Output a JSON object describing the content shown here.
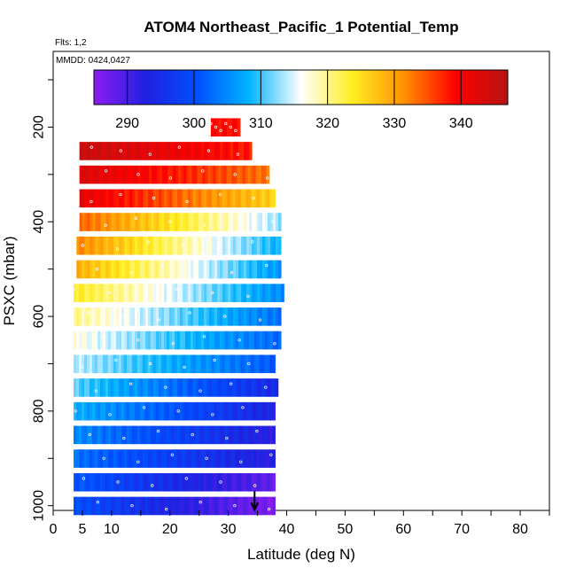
{
  "chart_data": {
    "type": "heatmap",
    "title": "ATOM4 Northeast_Pacific_1 Potential_Temp",
    "notes": [
      "Flts: 1,2",
      "MMDD: 0424,0427"
    ],
    "xlabel": "Latitude (deg N)",
    "ylabel": "PSXC (mbar)",
    "xlim": [
      0,
      85
    ],
    "ylim": [
      1010,
      40
    ],
    "x_ticks": [
      0,
      5,
      10,
      20,
      30,
      40,
      50,
      60,
      70,
      80
    ],
    "y_ticks": [
      200,
      400,
      600,
      800,
      1000
    ],
    "colorbar": {
      "ticks": [
        290,
        300,
        310,
        320,
        330,
        340
      ],
      "range": [
        285,
        347
      ],
      "colors": [
        "#8c1cf0",
        "#2020e0",
        "#0050ff",
        "#00b4ff",
        "#ffffff",
        "#ffee22",
        "#ff9000",
        "#ff0000",
        "#b41414"
      ]
    },
    "marker": {
      "x": 34.5,
      "label": "arrow"
    },
    "rows": [
      {
        "p": 200,
        "x0": 27,
        "x1": 32,
        "v0": 339,
        "v1": 339
      },
      {
        "p": 250,
        "x0": 4.5,
        "x1": 34,
        "v0": 345,
        "v1": 338
      },
      {
        "p": 300,
        "x0": 4.5,
        "x1": 37,
        "v0": 343,
        "v1": 333
      },
      {
        "p": 350,
        "x0": 4.5,
        "x1": 38,
        "v0": 342,
        "v1": 326
      },
      {
        "p": 400,
        "x0": 4.5,
        "x1": 39,
        "v0": 334,
        "v1": 313
      },
      {
        "p": 450,
        "x0": 4,
        "x1": 39,
        "v0": 332,
        "v1": 308
      },
      {
        "p": 500,
        "x0": 4,
        "x1": 39,
        "v0": 329,
        "v1": 306
      },
      {
        "p": 550,
        "x0": 3.5,
        "x1": 39.5,
        "v0": 324,
        "v1": 305
      },
      {
        "p": 600,
        "x0": 3.5,
        "x1": 39,
        "v0": 320,
        "v1": 303
      },
      {
        "p": 650,
        "x0": 3.5,
        "x1": 39,
        "v0": 317,
        "v1": 302
      },
      {
        "p": 700,
        "x0": 3.5,
        "x1": 38,
        "v0": 314,
        "v1": 301
      },
      {
        "p": 750,
        "x0": 3.5,
        "x1": 38.5,
        "v0": 311,
        "v1": 294
      },
      {
        "p": 800,
        "x0": 3.5,
        "x1": 38,
        "v0": 308,
        "v1": 293
      },
      {
        "p": 850,
        "x0": 3.5,
        "x1": 38,
        "v0": 305,
        "v1": 292
      },
      {
        "p": 900,
        "x0": 3.5,
        "x1": 38,
        "v0": 303,
        "v1": 292
      },
      {
        "p": 950,
        "x0": 3.5,
        "x1": 38,
        "v0": 301,
        "v1": 288
      },
      {
        "p": 1000,
        "x0": 3.5,
        "x1": 38,
        "v0": 300,
        "v1": 286
      }
    ]
  }
}
